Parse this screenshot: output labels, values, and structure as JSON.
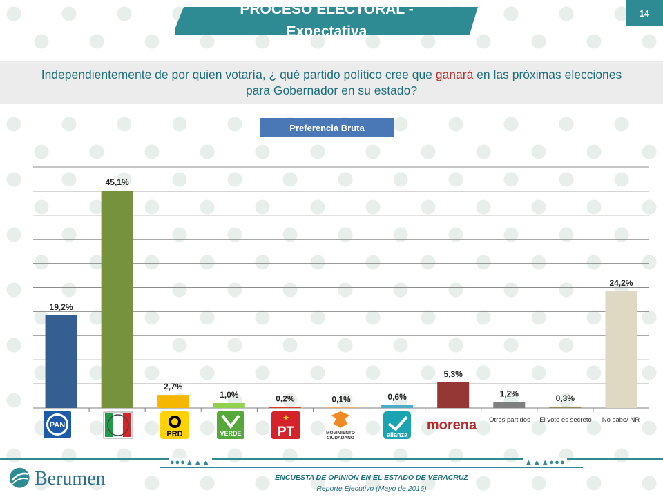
{
  "header": {
    "title_line1": "PROCESO ELECTORAL -",
    "title_line2": "Expectativa",
    "page_number": "14",
    "accent_color": "#2e8a93"
  },
  "question": {
    "before": "Independientemente de por quien votaría, ¿ qué partido político cree que ",
    "highlight": "ganará",
    "after": " en las próximas elecciones para Gobernador en su estado?"
  },
  "badge": {
    "label": "Preferencia  Bruta",
    "color": "#4a78b6"
  },
  "chart_data": {
    "type": "bar",
    "title": "",
    "xlabel": "",
    "ylabel": "",
    "ylim": [
      0,
      50
    ],
    "grid": true,
    "categories": [
      "PAN",
      "PRI",
      "PRD",
      "VERDE",
      "PT",
      "MOVIMIENTO CIUDADANO",
      "alianza",
      "morena",
      "Otros partidos",
      "El voto es secreto",
      "No sabe/ NR"
    ],
    "values": [
      19.2,
      45.1,
      2.7,
      1.0,
      0.2,
      0.1,
      0.6,
      5.3,
      1.2,
      0.3,
      24.2
    ],
    "value_labels": [
      "19,2%",
      "45,1%",
      "2,7%",
      "1,0%",
      "0,2%",
      "0,1%",
      "0,6%",
      "5,3%",
      "1,2%",
      "0,3%",
      "24,2%"
    ],
    "colors": [
      "#365f91",
      "#76923c",
      "#f5b700",
      "#92d050",
      "#e03a2f",
      "#f08a24",
      "#4bacc6",
      "#953735",
      "#7f7f7f",
      "#948a54",
      "#ddd9c3"
    ],
    "icons": [
      "pan-logo-icon",
      "pri-logo-icon",
      "prd-logo-icon",
      "verde-logo-icon",
      "pt-logo-icon",
      "movimiento-ciudadano-logo-icon",
      "nueva-alianza-logo-icon",
      "morena-logo-icon",
      "",
      "",
      ""
    ]
  },
  "logos": {
    "pan": "PAN",
    "prd": "PRD",
    "verde": "VERDE",
    "pt": "PT",
    "mc1": "MOVIMIENTO",
    "mc2": "CIUDADANO",
    "alianza": "alianza",
    "morena": "morena"
  },
  "text_labels": {
    "otros": "Otros partidos",
    "secreto": "El voto es secreto",
    "nosabe": "No sabe/ NR"
  },
  "footer": {
    "decoration_left": "●●●▲▲▲",
    "decoration_right": "▲▲▲●●●",
    "brand": "Berumen",
    "line1": "ENCUESTA DE OPINIÓN EN EL ESTADO DE  VERACRUZ",
    "line2": "Reporte  Ejecutivo  (Mayo de 2016)"
  }
}
